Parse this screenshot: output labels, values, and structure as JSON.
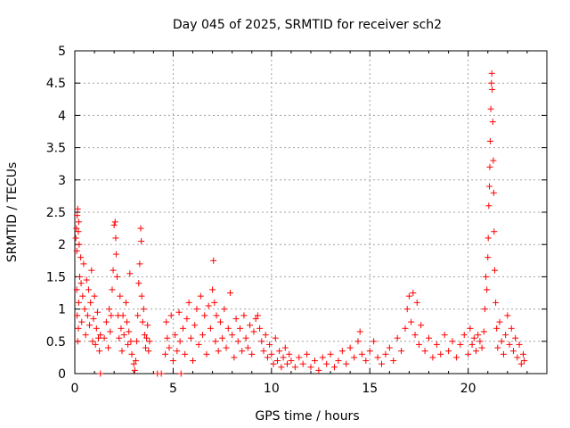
{
  "chart_data": {
    "type": "scatter",
    "title": "Day 045 of 2025, SRMTID for receiver sch2",
    "xlabel": "GPS time / hours",
    "ylabel": "SRMTID / TECUs",
    "xlim": [
      0,
      24
    ],
    "ylim": [
      0,
      5
    ],
    "x_ticks": [
      0,
      5,
      10,
      15,
      20
    ],
    "y_ticks": [
      0,
      0.5,
      1,
      1.5,
      2,
      2.5,
      3,
      3.5,
      4,
      4.5,
      5
    ],
    "x_tick_labels": [
      "0",
      "5",
      "10",
      "15",
      "20"
    ],
    "y_tick_labels": [
      "0",
      "0.5",
      "1",
      "1.5",
      "2",
      "2.5",
      "3",
      "3.5",
      "4",
      "4.5",
      "5"
    ],
    "grid": true,
    "marker": "+",
    "color": "#ff0000",
    "series": [
      {
        "name": "SRMTID",
        "points": [
          [
            0.05,
            2.1
          ],
          [
            0.08,
            2.25
          ],
          [
            0.1,
            1.9
          ],
          [
            0.12,
            2.45
          ],
          [
            0.15,
            2.55
          ],
          [
            0.18,
            2.2
          ],
          [
            0.2,
            2.35
          ],
          [
            0.22,
            2.0
          ],
          [
            0.1,
            1.3
          ],
          [
            0.12,
            0.9
          ],
          [
            0.15,
            0.5
          ],
          [
            0.18,
            0.7
          ],
          [
            0.2,
            1.1
          ],
          [
            0.25,
            1.5
          ],
          [
            0.3,
            1.8
          ],
          [
            0.32,
            1.4
          ],
          [
            0.35,
            0.8
          ],
          [
            0.4,
            1.2
          ],
          [
            0.45,
            1.7
          ],
          [
            0.5,
            1.0
          ],
          [
            0.55,
            0.6
          ],
          [
            0.6,
            1.45
          ],
          [
            0.65,
            0.9
          ],
          [
            0.7,
            1.3
          ],
          [
            0.75,
            0.75
          ],
          [
            0.8,
            1.1
          ],
          [
            0.85,
            1.6
          ],
          [
            0.9,
            0.5
          ],
          [
            0.95,
            0.85
          ],
          [
            1.0,
            1.2
          ],
          [
            1.05,
            0.45
          ],
          [
            1.1,
            0.7
          ],
          [
            1.15,
            0.95
          ],
          [
            1.2,
            0.55
          ],
          [
            1.25,
            0.35
          ],
          [
            1.3,
            0.6
          ],
          [
            1.5,
            0.55
          ],
          [
            1.6,
            0.8
          ],
          [
            1.7,
            0.4
          ],
          [
            1.75,
            1.0
          ],
          [
            1.8,
            0.65
          ],
          [
            1.85,
            0.9
          ],
          [
            1.9,
            1.3
          ],
          [
            1.95,
            1.6
          ],
          [
            2.0,
            2.3
          ],
          [
            2.05,
            2.35
          ],
          [
            2.08,
            2.1
          ],
          [
            2.1,
            1.85
          ],
          [
            2.15,
            1.5
          ],
          [
            2.2,
            0.9
          ],
          [
            2.25,
            0.55
          ],
          [
            2.3,
            1.2
          ],
          [
            2.35,
            0.7
          ],
          [
            2.4,
            0.35
          ],
          [
            2.45,
            0.9
          ],
          [
            2.5,
            0.6
          ],
          [
            2.6,
            1.1
          ],
          [
            2.65,
            0.8
          ],
          [
            2.7,
            0.45
          ],
          [
            2.75,
            0.65
          ],
          [
            2.8,
            1.55
          ],
          [
            2.85,
            0.5
          ],
          [
            2.9,
            0.3
          ],
          [
            3.0,
            0.15
          ],
          [
            3.05,
            0.05
          ],
          [
            3.1,
            0.2
          ],
          [
            3.15,
            0.5
          ],
          [
            3.2,
            0.9
          ],
          [
            3.25,
            1.4
          ],
          [
            3.3,
            1.7
          ],
          [
            3.35,
            2.25
          ],
          [
            3.38,
            2.05
          ],
          [
            3.4,
            1.2
          ],
          [
            3.45,
            0.8
          ],
          [
            3.5,
            1.0
          ],
          [
            3.55,
            0.6
          ],
          [
            3.6,
            0.4
          ],
          [
            3.65,
            0.55
          ],
          [
            3.7,
            0.75
          ],
          [
            3.75,
            0.35
          ],
          [
            3.8,
            0.5
          ],
          [
            1.3,
            0.0
          ],
          [
            4.2,
            0.0
          ],
          [
            4.4,
            0.0
          ],
          [
            5.4,
            0.0
          ],
          [
            4.6,
            0.3
          ],
          [
            4.65,
            0.8
          ],
          [
            4.7,
            0.55
          ],
          [
            4.8,
            0.4
          ],
          [
            4.9,
            0.9
          ],
          [
            5.0,
            0.2
          ],
          [
            5.1,
            0.6
          ],
          [
            5.2,
            0.35
          ],
          [
            5.3,
            0.95
          ],
          [
            5.35,
            0.5
          ],
          [
            5.5,
            0.7
          ],
          [
            5.6,
            0.3
          ],
          [
            5.7,
            0.85
          ],
          [
            5.8,
            1.1
          ],
          [
            5.9,
            0.55
          ],
          [
            6.0,
            0.2
          ],
          [
            6.1,
            0.75
          ],
          [
            6.2,
            1.0
          ],
          [
            6.3,
            0.45
          ],
          [
            6.4,
            1.2
          ],
          [
            6.5,
            0.6
          ],
          [
            6.6,
            0.9
          ],
          [
            6.7,
            0.3
          ],
          [
            6.8,
            1.05
          ],
          [
            6.9,
            0.7
          ],
          [
            7.0,
            1.3
          ],
          [
            7.05,
            1.75
          ],
          [
            7.1,
            1.1
          ],
          [
            7.15,
            0.5
          ],
          [
            7.2,
            0.9
          ],
          [
            7.3,
            0.35
          ],
          [
            7.4,
            0.8
          ],
          [
            7.5,
            0.55
          ],
          [
            7.6,
            1.0
          ],
          [
            7.7,
            0.4
          ],
          [
            7.8,
            0.7
          ],
          [
            7.9,
            1.25
          ],
          [
            8.0,
            0.6
          ],
          [
            8.1,
            0.25
          ],
          [
            8.2,
            0.85
          ],
          [
            8.3,
            0.5
          ],
          [
            8.4,
            0.7
          ],
          [
            8.5,
            0.35
          ],
          [
            8.6,
            0.9
          ],
          [
            8.7,
            0.55
          ],
          [
            8.8,
            0.4
          ],
          [
            8.9,
            0.75
          ],
          [
            9.0,
            0.3
          ],
          [
            9.1,
            0.65
          ],
          [
            9.2,
            0.85
          ],
          [
            9.3,
            0.9
          ],
          [
            9.4,
            0.7
          ],
          [
            9.5,
            0.5
          ],
          [
            9.6,
            0.35
          ],
          [
            9.7,
            0.6
          ],
          [
            9.8,
            0.25
          ],
          [
            9.9,
            0.45
          ],
          [
            10.0,
            0.3
          ],
          [
            10.1,
            0.15
          ],
          [
            10.2,
            0.55
          ],
          [
            10.3,
            0.2
          ],
          [
            10.4,
            0.35
          ],
          [
            10.5,
            0.1
          ],
          [
            10.6,
            0.25
          ],
          [
            10.7,
            0.4
          ],
          [
            10.8,
            0.15
          ],
          [
            10.9,
            0.3
          ],
          [
            11.0,
            0.2
          ],
          [
            11.2,
            0.1
          ],
          [
            11.4,
            0.25
          ],
          [
            11.6,
            0.15
          ],
          [
            11.8,
            0.3
          ],
          [
            12.0,
            0.1
          ],
          [
            12.2,
            0.2
          ],
          [
            12.4,
            0.05
          ],
          [
            12.6,
            0.25
          ],
          [
            12.8,
            0.15
          ],
          [
            13.0,
            0.3
          ],
          [
            13.2,
            0.1
          ],
          [
            13.4,
            0.2
          ],
          [
            13.6,
            0.35
          ],
          [
            13.8,
            0.15
          ],
          [
            14.0,
            0.4
          ],
          [
            14.2,
            0.25
          ],
          [
            14.4,
            0.5
          ],
          [
            14.5,
            0.65
          ],
          [
            14.6,
            0.3
          ],
          [
            14.8,
            0.2
          ],
          [
            15.0,
            0.35
          ],
          [
            15.2,
            0.5
          ],
          [
            15.4,
            0.25
          ],
          [
            15.6,
            0.15
          ],
          [
            15.8,
            0.3
          ],
          [
            16.0,
            0.4
          ],
          [
            16.2,
            0.2
          ],
          [
            16.4,
            0.55
          ],
          [
            16.6,
            0.35
          ],
          [
            16.8,
            0.7
          ],
          [
            16.9,
            1.0
          ],
          [
            17.0,
            1.2
          ],
          [
            17.1,
            0.8
          ],
          [
            17.2,
            1.25
          ],
          [
            17.3,
            0.6
          ],
          [
            17.4,
            1.1
          ],
          [
            17.5,
            0.45
          ],
          [
            17.6,
            0.75
          ],
          [
            17.8,
            0.35
          ],
          [
            18.0,
            0.55
          ],
          [
            18.2,
            0.25
          ],
          [
            18.4,
            0.45
          ],
          [
            18.6,
            0.3
          ],
          [
            18.8,
            0.6
          ],
          [
            19.0,
            0.35
          ],
          [
            19.2,
            0.5
          ],
          [
            19.4,
            0.25
          ],
          [
            19.6,
            0.45
          ],
          [
            19.8,
            0.6
          ],
          [
            20.0,
            0.3
          ],
          [
            20.1,
            0.7
          ],
          [
            20.2,
            0.45
          ],
          [
            20.3,
            0.55
          ],
          [
            20.4,
            0.35
          ],
          [
            20.5,
            0.6
          ],
          [
            20.6,
            0.5
          ],
          [
            20.7,
            0.4
          ],
          [
            20.8,
            0.65
          ],
          [
            20.85,
            1.0
          ],
          [
            20.9,
            1.5
          ],
          [
            20.95,
            1.3
          ],
          [
            21.0,
            1.8
          ],
          [
            21.02,
            2.1
          ],
          [
            21.05,
            2.6
          ],
          [
            21.08,
            2.9
          ],
          [
            21.1,
            3.2
          ],
          [
            21.12,
            3.6
          ],
          [
            21.15,
            4.1
          ],
          [
            21.18,
            4.5
          ],
          [
            21.2,
            4.65
          ],
          [
            21.22,
            4.4
          ],
          [
            21.25,
            3.9
          ],
          [
            21.28,
            3.3
          ],
          [
            21.3,
            2.8
          ],
          [
            21.32,
            2.2
          ],
          [
            21.35,
            1.6
          ],
          [
            21.4,
            1.1
          ],
          [
            21.45,
            0.7
          ],
          [
            21.5,
            0.4
          ],
          [
            21.6,
            0.8
          ],
          [
            21.7,
            0.5
          ],
          [
            21.8,
            0.3
          ],
          [
            21.9,
            0.6
          ],
          [
            22.0,
            0.9
          ],
          [
            22.1,
            0.45
          ],
          [
            22.2,
            0.7
          ],
          [
            22.3,
            0.35
          ],
          [
            22.4,
            0.55
          ],
          [
            22.5,
            0.25
          ],
          [
            22.6,
            0.45
          ],
          [
            22.7,
            0.15
          ],
          [
            22.8,
            0.3
          ],
          [
            22.85,
            0.2
          ]
        ]
      }
    ]
  }
}
